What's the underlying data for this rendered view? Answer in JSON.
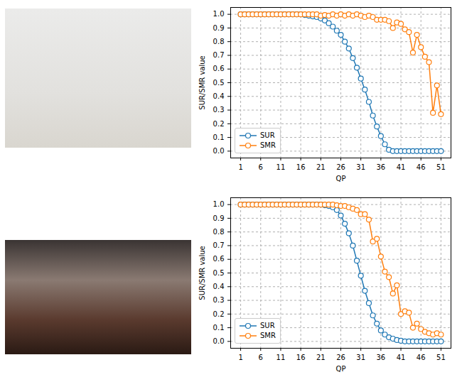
{
  "chart_data": [
    {
      "type": "line",
      "x_label": "QP",
      "y_label": "SUR/SMR value",
      "x": [
        1,
        2,
        3,
        4,
        5,
        6,
        7,
        8,
        9,
        10,
        11,
        12,
        13,
        14,
        15,
        16,
        17,
        18,
        19,
        20,
        21,
        22,
        23,
        24,
        25,
        26,
        27,
        28,
        29,
        30,
        31,
        32,
        33,
        34,
        35,
        36,
        37,
        38,
        39,
        40,
        41,
        42,
        43,
        44,
        45,
        46,
        47,
        48,
        49,
        50,
        51
      ],
      "series": [
        {
          "name": "SUR",
          "color": "#1f77b4",
          "marker": "circle",
          "line_style": "solid",
          "values": [
            1.0,
            1.0,
            1.0,
            1.0,
            1.0,
            1.0,
            1.0,
            1.0,
            1.0,
            1.0,
            1.0,
            1.0,
            1.0,
            1.0,
            1.0,
            1.0,
            0.995,
            0.99,
            0.985,
            0.98,
            0.97,
            0.955,
            0.935,
            0.91,
            0.88,
            0.85,
            0.8,
            0.75,
            0.68,
            0.61,
            0.53,
            0.45,
            0.36,
            0.26,
            0.18,
            0.11,
            0.05,
            0.01,
            0.0,
            0.0,
            0.0,
            0.0,
            0.0,
            0.0,
            0.0,
            0.0,
            0.0,
            0.0,
            0.0,
            0.0,
            0.0
          ]
        },
        {
          "name": "SMR",
          "color": "#ff7f0e",
          "marker": "circle",
          "line_style": "solid",
          "values": [
            1.0,
            1.0,
            1.0,
            1.0,
            1.0,
            1.0,
            1.0,
            1.0,
            1.0,
            1.0,
            1.0,
            1.0,
            1.0,
            1.0,
            1.0,
            1.0,
            1.0,
            1.0,
            1.0,
            1.0,
            0.99,
            0.995,
            0.99,
            1.0,
            0.99,
            1.0,
            0.99,
            1.0,
            0.99,
            1.0,
            0.99,
            0.98,
            0.99,
            0.98,
            0.96,
            0.96,
            0.96,
            0.95,
            0.9,
            0.94,
            0.93,
            0.89,
            0.87,
            0.72,
            0.85,
            0.76,
            0.69,
            0.65,
            0.28,
            0.48,
            0.27
          ]
        }
      ],
      "xlim": [
        -1.5,
        53.5
      ],
      "xticks": [
        1,
        6,
        11,
        16,
        21,
        26,
        31,
        36,
        41,
        46,
        51
      ],
      "ylim": [
        -0.05,
        1.05
      ],
      "yticks": [
        {
          "value": 0,
          "label": "0.0"
        },
        {
          "value": 0.1,
          "label": "0.1"
        },
        {
          "value": 0.2,
          "label": "0.2"
        },
        {
          "value": 0.3,
          "label": "0.3"
        },
        {
          "value": 0.4,
          "label": "0.4"
        },
        {
          "value": 0.5,
          "label": "0.5"
        },
        {
          "value": 0.6,
          "label": "0.6"
        },
        {
          "value": 0.7,
          "label": "0.7"
        },
        {
          "value": 0.8,
          "label": "0.8"
        },
        {
          "value": 0.9,
          "label": "0.9"
        },
        {
          "value": 1,
          "label": "1.0"
        }
      ],
      "grid": true,
      "legend": "lower left"
    },
    {
      "type": "line",
      "x_label": "QP",
      "y_label": "SUR/SMR value",
      "x": [
        1,
        2,
        3,
        4,
        5,
        6,
        7,
        8,
        9,
        10,
        11,
        12,
        13,
        14,
        15,
        16,
        17,
        18,
        19,
        20,
        21,
        22,
        23,
        24,
        25,
        26,
        27,
        28,
        29,
        30,
        31,
        32,
        33,
        34,
        35,
        36,
        37,
        38,
        39,
        40,
        41,
        42,
        43,
        44,
        45,
        46,
        47,
        48,
        49,
        50,
        51
      ],
      "series": [
        {
          "name": "SUR",
          "color": "#1f77b4",
          "marker": "circle",
          "line_style": "solid",
          "values": [
            1.0,
            1.0,
            1.0,
            1.0,
            1.0,
            1.0,
            1.0,
            1.0,
            1.0,
            1.0,
            1.0,
            1.0,
            1.0,
            1.0,
            1.0,
            1.0,
            1.0,
            1.0,
            1.0,
            1.0,
            1.0,
            0.995,
            0.99,
            0.98,
            0.96,
            0.92,
            0.86,
            0.79,
            0.7,
            0.59,
            0.48,
            0.37,
            0.28,
            0.19,
            0.13,
            0.08,
            0.05,
            0.03,
            0.02,
            0.01,
            0.005,
            0.0,
            0.0,
            0.0,
            0.0,
            0.0,
            0.0,
            0.0,
            0.0,
            0.0,
            0.0
          ]
        },
        {
          "name": "SMR",
          "color": "#ff7f0e",
          "marker": "circle",
          "line_style": "solid",
          "values": [
            1.0,
            1.0,
            1.0,
            1.0,
            1.0,
            1.0,
            1.0,
            1.0,
            1.0,
            1.0,
            1.0,
            1.0,
            1.0,
            1.0,
            1.0,
            1.0,
            1.0,
            1.0,
            1.0,
            1.0,
            1.0,
            1.0,
            1.0,
            1.0,
            0.995,
            0.99,
            0.99,
            0.98,
            0.97,
            0.96,
            0.93,
            0.93,
            0.89,
            0.73,
            0.75,
            0.62,
            0.51,
            0.47,
            0.35,
            0.41,
            0.2,
            0.22,
            0.21,
            0.1,
            0.13,
            0.09,
            0.07,
            0.06,
            0.05,
            0.06,
            0.05
          ]
        }
      ],
      "xlim": [
        -1.5,
        53.5
      ],
      "xticks": [
        1,
        6,
        11,
        16,
        21,
        26,
        31,
        36,
        41,
        46,
        51
      ],
      "ylim": [
        -0.05,
        1.05
      ],
      "yticks": [
        {
          "value": 0,
          "label": "0.0"
        },
        {
          "value": 0.1,
          "label": "0.1"
        },
        {
          "value": 0.2,
          "label": "0.2"
        },
        {
          "value": 0.3,
          "label": "0.3"
        },
        {
          "value": 0.4,
          "label": "0.4"
        },
        {
          "value": 0.5,
          "label": "0.5"
        },
        {
          "value": 0.6,
          "label": "0.6"
        },
        {
          "value": 0.7,
          "label": "0.7"
        },
        {
          "value": 0.8,
          "label": "0.8"
        },
        {
          "value": 0.9,
          "label": "0.9"
        },
        {
          "value": 1,
          "label": "1.0"
        }
      ],
      "grid": true,
      "legend": "lower left"
    }
  ]
}
